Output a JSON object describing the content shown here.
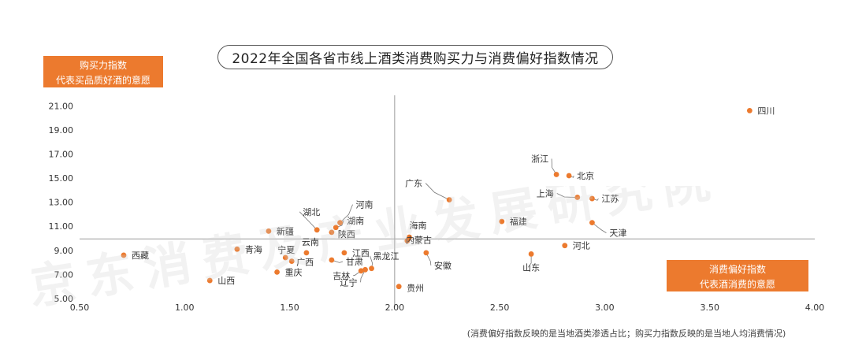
{
  "title": "2022年全国各省市线上酒类消费购买力与消费偏好指数情况",
  "ylabel_box": {
    "line1": "购买力指数",
    "line2": "代表买品质好酒的意愿"
  },
  "xlabel_box": {
    "line1": "消费偏好指数",
    "line2": "代表酒消费的意愿"
  },
  "footnote": "(消费偏好指数反映的是当地酒类渗透占比；购买力指数反映的是当地人均消费情况)",
  "watermark": "京东消费及产业发展研究院",
  "colors": {
    "point": "#ec7a2e",
    "accent": "#ec7a2e",
    "axis": "#9a9a9a",
    "tick": "#333333",
    "label": "#333333"
  },
  "chart_data": {
    "type": "scatter",
    "xlim": [
      0.5,
      4.0
    ],
    "ylim": [
      5.0,
      22.0
    ],
    "xticks": [
      "0.50",
      "1.00",
      "1.50",
      "2.00",
      "2.50",
      "3.00",
      "3.50",
      "4.00"
    ],
    "yticks": [
      "5.00",
      "7.00",
      "9.00",
      "11.00",
      "13.00",
      "15.00",
      "17.00",
      "19.00",
      "21.00"
    ],
    "reference_lines": {
      "x": 2.0,
      "y": 9.95
    },
    "grid": false,
    "points": [
      {
        "label": "四川",
        "x": 3.69,
        "y": 20.6
      },
      {
        "label": "浙江",
        "x": 2.77,
        "y": 15.3
      },
      {
        "label": "北京",
        "x": 2.83,
        "y": 15.2
      },
      {
        "label": "上海",
        "x": 2.87,
        "y": 13.4
      },
      {
        "label": "江苏",
        "x": 2.94,
        "y": 13.3
      },
      {
        "label": "广东",
        "x": 2.26,
        "y": 13.2
      },
      {
        "label": "福建",
        "x": 2.51,
        "y": 11.4
      },
      {
        "label": "天津",
        "x": 2.94,
        "y": 11.3
      },
      {
        "label": "河北",
        "x": 2.81,
        "y": 9.4
      },
      {
        "label": "山东",
        "x": 2.65,
        "y": 8.7
      },
      {
        "label": "海南",
        "x": 2.07,
        "y": 10.1
      },
      {
        "label": "内蒙古",
        "x": 2.06,
        "y": 9.8
      },
      {
        "label": "安徽",
        "x": 2.15,
        "y": 8.8
      },
      {
        "label": "贵州",
        "x": 2.02,
        "y": 6.0
      },
      {
        "label": "黑龙江",
        "x": 1.89,
        "y": 7.5
      },
      {
        "label": "辽宁",
        "x": 1.86,
        "y": 7.4
      },
      {
        "label": "吉林",
        "x": 1.84,
        "y": 7.3
      },
      {
        "label": "江西",
        "x": 1.76,
        "y": 8.8
      },
      {
        "label": "甘肃",
        "x": 1.7,
        "y": 8.2
      },
      {
        "label": "河南",
        "x": 1.74,
        "y": 11.3
      },
      {
        "label": "湖南",
        "x": 1.72,
        "y": 10.9
      },
      {
        "label": "陕西",
        "x": 1.7,
        "y": 10.5
      },
      {
        "label": "湖北",
        "x": 1.63,
        "y": 10.7
      },
      {
        "label": "新疆",
        "x": 1.4,
        "y": 10.6
      },
      {
        "label": "云南",
        "x": 1.58,
        "y": 8.8
      },
      {
        "label": "宁夏",
        "x": 1.48,
        "y": 8.4
      },
      {
        "label": "广西",
        "x": 1.51,
        "y": 8.1
      },
      {
        "label": "重庆",
        "x": 1.44,
        "y": 7.2
      },
      {
        "label": "青海",
        "x": 1.25,
        "y": 9.1
      },
      {
        "label": "西藏",
        "x": 0.71,
        "y": 8.6
      },
      {
        "label": "山西",
        "x": 1.12,
        "y": 6.5
      }
    ]
  }
}
